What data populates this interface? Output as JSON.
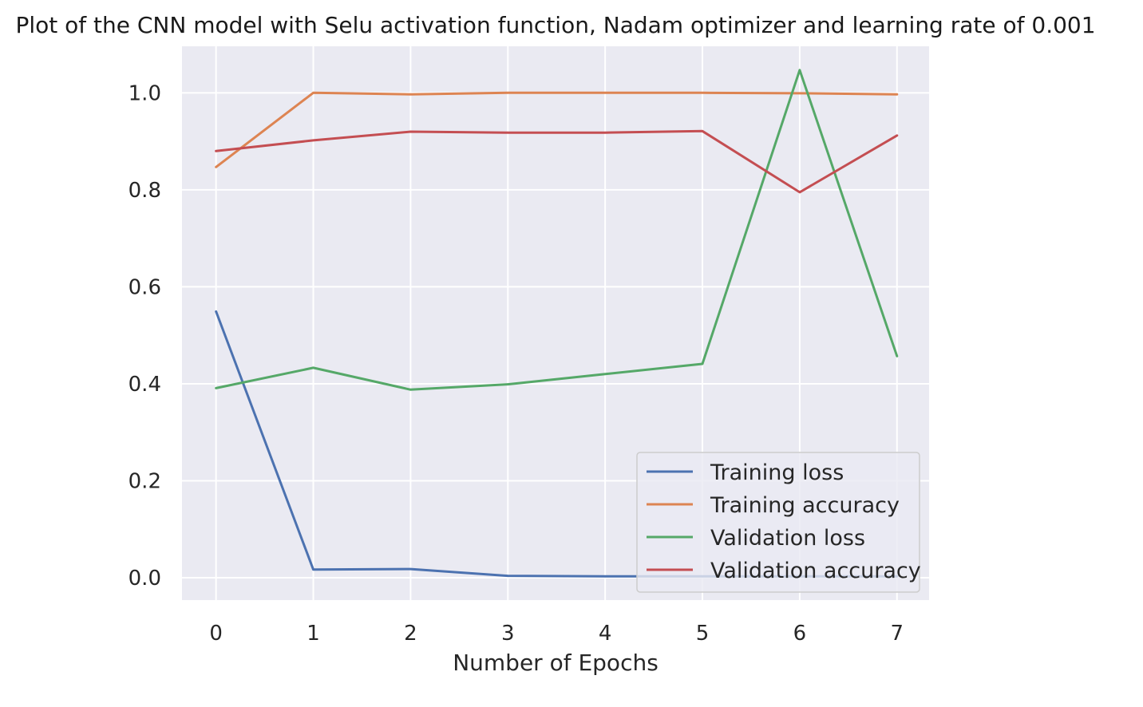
{
  "chart_data": {
    "type": "line",
    "title": "Plot of the CNN model with Selu activation function, Nadam optimizer and learning rate of 0.001",
    "xlabel": "Number of Epochs",
    "ylabel": "",
    "x": [
      0,
      1,
      2,
      3,
      4,
      5,
      6,
      7
    ],
    "x_ticks": [
      "0",
      "1",
      "2",
      "3",
      "4",
      "5",
      "6",
      "7"
    ],
    "y_ticks": [
      "0.0",
      "0.2",
      "0.4",
      "0.6",
      "0.8",
      "1.0"
    ],
    "xlim": [
      -0.35,
      7.33
    ],
    "ylim": [
      -0.046,
      1.096
    ],
    "grid": true,
    "legend_position": "lower right",
    "series": [
      {
        "name": "Training loss",
        "color": "#4c72b0",
        "values": [
          0.549,
          0.017,
          0.018,
          0.004,
          0.003,
          0.003,
          0.003,
          0.003
        ]
      },
      {
        "name": "Training accuracy",
        "color": "#dd8452",
        "values": [
          0.847,
          1.0,
          0.997,
          1.0,
          1.0,
          1.0,
          0.999,
          0.997
        ]
      },
      {
        "name": "Validation loss",
        "color": "#55a868",
        "values": [
          0.391,
          0.433,
          0.388,
          0.399,
          0.42,
          0.441,
          1.047,
          0.457
        ]
      },
      {
        "name": "Validation accuracy",
        "color": "#c44e52",
        "values": [
          0.88,
          0.902,
          0.92,
          0.918,
          0.918,
          0.921,
          0.795,
          0.912
        ]
      }
    ]
  }
}
